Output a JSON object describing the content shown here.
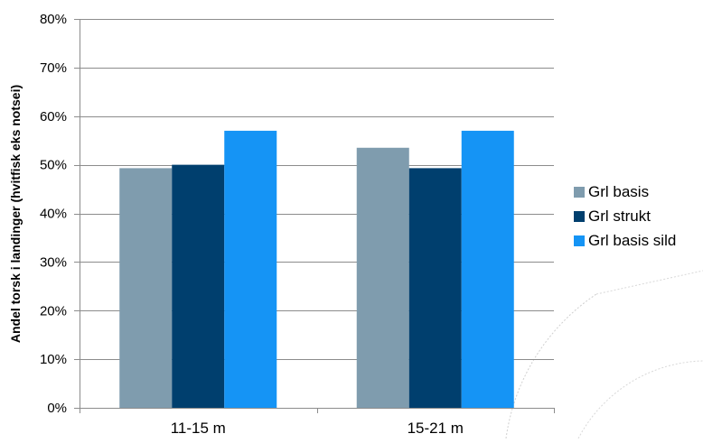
{
  "chart_data": {
    "type": "bar",
    "ylabel": "Andel torsk i landinger (hvitfisk eks notsei)",
    "xlabel": "",
    "categories": [
      "11-15 m",
      "15-21 m"
    ],
    "ylim": [
      0,
      80
    ],
    "yticks": [
      0,
      10,
      20,
      30,
      40,
      50,
      60,
      70,
      80
    ],
    "ytick_labels": [
      "0%",
      "10%",
      "20%",
      "30%",
      "40%",
      "50%",
      "60%",
      "70%",
      "80%"
    ],
    "grid": true,
    "legend_position": "right",
    "series": [
      {
        "name": "Grl basis",
        "color": "#7f9cae",
        "values": [
          49.3,
          53.5
        ]
      },
      {
        "name": "Grl strukt",
        "color": "#003f6e",
        "values": [
          50.0,
          49.3
        ]
      },
      {
        "name": "Grl basis sild",
        "color": "#1594f5",
        "values": [
          57.0,
          57.0
        ]
      }
    ]
  }
}
